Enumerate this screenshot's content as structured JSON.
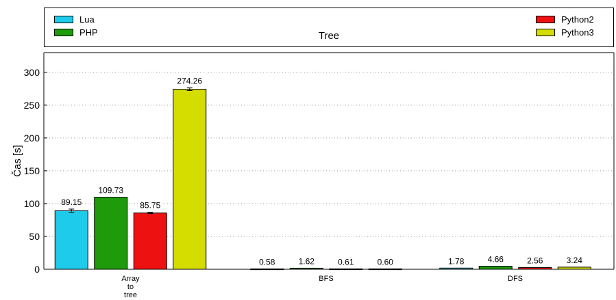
{
  "chart_data": {
    "type": "bar",
    "title": "Tree",
    "ylabel": "Čas [s]",
    "xlabel": "",
    "ylim": [
      0,
      330
    ],
    "yticks": [
      0,
      50,
      100,
      150,
      200,
      250,
      300
    ],
    "grid": "horizontal dotted",
    "legend_placement": "top",
    "categories": [
      [
        "Array",
        "to",
        "tree"
      ],
      [
        "BFS"
      ],
      [
        "DFS"
      ]
    ],
    "series": [
      {
        "name": "Lua",
        "color": "#1ecbeb",
        "values": [
          89.15,
          0.58,
          1.78
        ],
        "labels": [
          "89.15",
          "0.58",
          "1.78"
        ],
        "errors": [
          2.5,
          0,
          0
        ]
      },
      {
        "name": "PHP",
        "color": "#1e9a0a",
        "values": [
          109.73,
          1.62,
          4.66
        ],
        "labels": [
          "109.73",
          "1.62",
          "4.66"
        ],
        "errors": [
          0,
          0,
          0
        ]
      },
      {
        "name": "Python2",
        "color": "#ee1111",
        "values": [
          85.75,
          0.61,
          2.56
        ],
        "labels": [
          "85.75",
          "0.61",
          "2.56"
        ],
        "errors": [
          1.0,
          0,
          0
        ]
      },
      {
        "name": "Python3",
        "color": "#d4dc00",
        "values": [
          274.26,
          0.6,
          3.24
        ],
        "labels": [
          "274.26",
          "0.60",
          "3.24"
        ],
        "errors": [
          2.0,
          0,
          0
        ]
      }
    ]
  }
}
